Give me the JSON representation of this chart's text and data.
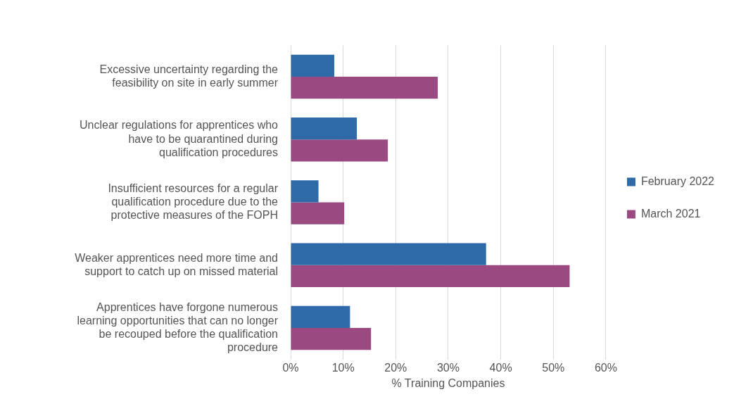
{
  "chart_data": {
    "type": "bar",
    "orientation": "horizontal",
    "xlabel": "% Training Companies",
    "categories": [
      "Excessive uncertainty regarding the feasibility on site in early summer",
      "Unclear regulations for apprentices who have to be quarantined during qualification procedures",
      "Insufficient resources for a regular qualification procedure due to the protective measures of the FOPH",
      "Weaker apprentices need more time and support to catch up on missed material",
      "Apprentices have forgone numerous learning opportunities that can no longer be recouped before the qualification procedure"
    ],
    "series": [
      {
        "name": "February 2022",
        "color": "#2e6aa8",
        "values": [
          8.3,
          12.6,
          5.3,
          37.2,
          11.3
        ]
      },
      {
        "name": "March 2021",
        "color": "#9a4a80",
        "values": [
          28.0,
          18.5,
          10.2,
          53.1,
          15.3
        ]
      }
    ],
    "xlim": [
      0,
      60
    ],
    "xticks": [
      {
        "value": 0,
        "label": "0%"
      },
      {
        "value": 10,
        "label": "10%"
      },
      {
        "value": 20,
        "label": "20%"
      },
      {
        "value": 30,
        "label": "30%"
      },
      {
        "value": 40,
        "label": "40%"
      },
      {
        "value": 50,
        "label": "50%"
      },
      {
        "value": 60,
        "label": "60%"
      }
    ],
    "grid": "x",
    "legend": "right"
  }
}
